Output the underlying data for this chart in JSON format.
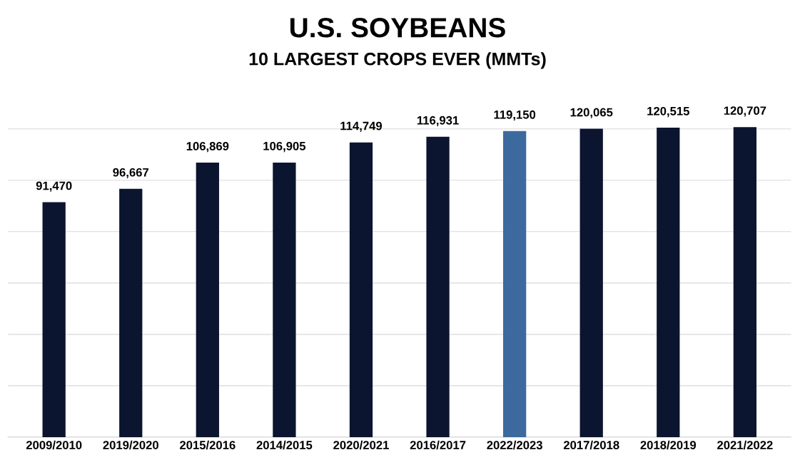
{
  "chart_data": {
    "type": "bar",
    "title": "U.S. SOYBEANS",
    "subtitle": "10 LARGEST CROPS EVER (MMTs)",
    "categories": [
      "2009/2010",
      "2019/2020",
      "2015/2016",
      "2014/2015",
      "2020/2021",
      "2016/2017",
      "2022/2023",
      "2017/2018",
      "2018/2019",
      "2021/2022"
    ],
    "values": [
      91470,
      96667,
      106869,
      106905,
      114749,
      116931,
      119150,
      120065,
      120515,
      120707
    ],
    "colors": [
      "#0b1530",
      "#0b1530",
      "#0b1530",
      "#0b1530",
      "#0b1530",
      "#0b1530",
      "#3d6a9e",
      "#0b1530",
      "#0b1530",
      "#0b1530"
    ],
    "value_labels": [
      "91,470",
      "96,667",
      "106,869",
      "106,905",
      "114,749",
      "116,931",
      "119,150",
      "120,065",
      "120,515",
      "120,707"
    ],
    "grid": "y",
    "tick_labels": "x"
  }
}
